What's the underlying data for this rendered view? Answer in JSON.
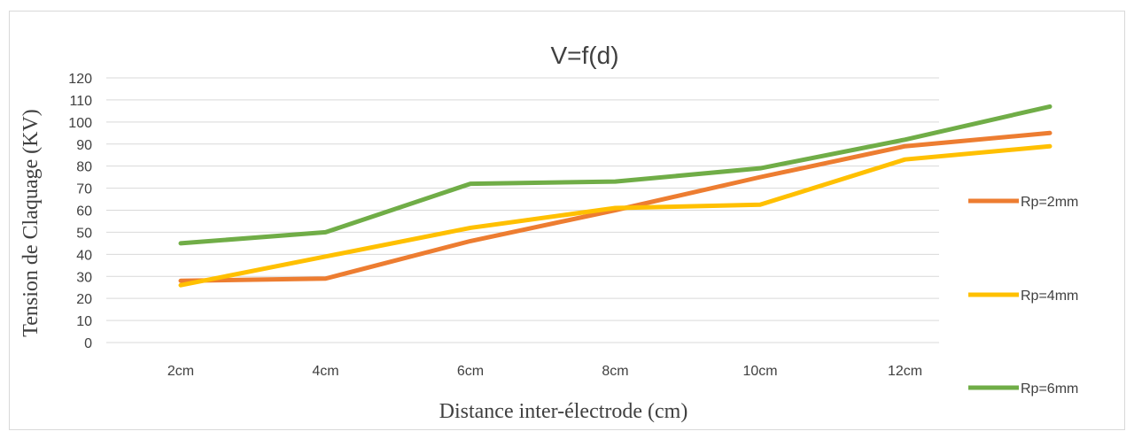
{
  "chart_data": {
    "type": "line",
    "title": "V=f(d)",
    "xlabel": "Distance inter-électrode (cm)",
    "ylabel": "Tension de Claquage (KV)",
    "categories": [
      "2cm",
      "4cm",
      "6cm",
      "8cm",
      "10cm",
      "12cm",
      ""
    ],
    "ylim": [
      0,
      120
    ],
    "yticks": [
      0,
      10,
      20,
      30,
      40,
      50,
      60,
      70,
      80,
      90,
      100,
      110,
      120
    ],
    "grid": true,
    "legend_position": "right",
    "series": [
      {
        "name": "Rp=2mm",
        "color": "#ED7D31",
        "values": [
          28,
          29,
          46,
          60,
          75,
          89,
          95
        ]
      },
      {
        "name": "Rp=4mm",
        "color": "#FFC000",
        "values": [
          26,
          39,
          52,
          61,
          62.5,
          83,
          89
        ]
      },
      {
        "name": "Rp=6mm",
        "color": "#70AD47",
        "values": [
          45,
          50,
          72,
          73,
          79,
          92,
          107
        ]
      }
    ]
  }
}
